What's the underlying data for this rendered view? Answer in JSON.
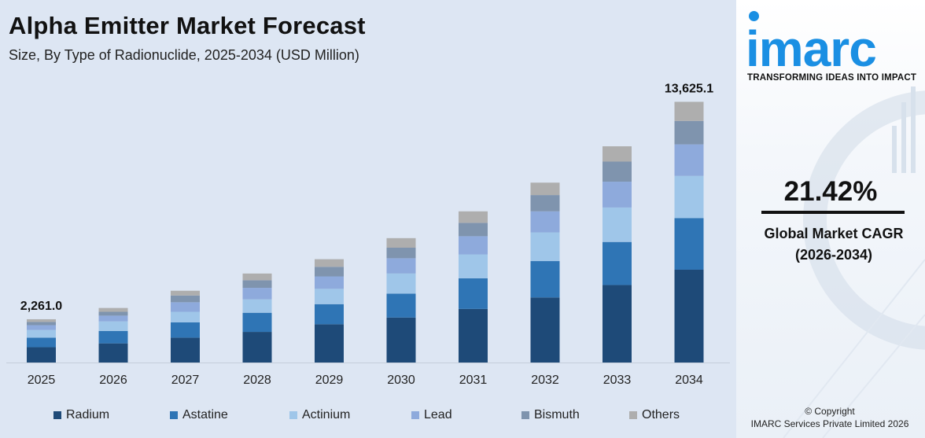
{
  "chart_data": {
    "type": "bar",
    "stacked": true,
    "title": "Alpha Emitter Market Forecast",
    "subtitle": "Size, By Type of Radionuclide, 2025-2034 (USD Million)",
    "xlabel": "",
    "ylabel": "",
    "ylim": [
      0,
      15000
    ],
    "grid": false,
    "legend": "bottom",
    "categories": [
      "2025",
      "2026",
      "2027",
      "2028",
      "2029",
      "2030",
      "2031",
      "2032",
      "2033",
      "2034"
    ],
    "series": [
      {
        "name": "Radium",
        "color": "#1e4a78",
        "values": [
          800,
          1000,
          1300,
          1600,
          2000,
          2350,
          2800,
          3400,
          4050,
          4850
        ]
      },
      {
        "name": "Astatine",
        "color": "#2f75b5",
        "values": [
          500,
          650,
          800,
          1000,
          1050,
          1250,
          1600,
          1900,
          2250,
          2700
        ]
      },
      {
        "name": "Actinium",
        "color": "#9fc6e9",
        "values": [
          400,
          500,
          550,
          700,
          800,
          1050,
          1250,
          1500,
          1800,
          2200
        ]
      },
      {
        "name": "Lead",
        "color": "#8eaadc",
        "values": [
          250,
          300,
          500,
          600,
          650,
          800,
          950,
          1100,
          1350,
          1650
        ]
      },
      {
        "name": "Bismuth",
        "color": "#7f94ae",
        "values": [
          170,
          200,
          350,
          400,
          500,
          550,
          700,
          850,
          1050,
          1225
        ]
      },
      {
        "name": "Others",
        "color": "#aeaeae",
        "values": [
          141,
          200,
          250,
          350,
          400,
          500,
          600,
          650,
          800,
          1000
        ]
      }
    ],
    "totals": [
      2261.0,
      null,
      null,
      null,
      null,
      null,
      null,
      null,
      null,
      13625.1
    ],
    "data_labels": [
      "2,261.0",
      "",
      "",
      "",
      "",
      "",
      "",
      "",
      "",
      "13,625.1"
    ]
  },
  "side_panel": {
    "brand": "imarc",
    "tagline": "TRANSFORMING IDEAS INTO IMPACT",
    "cagr_value": "21.42%",
    "cagr_label_line1": "Global Market CAGR",
    "cagr_label_line2": "(2026-2034)",
    "copyright_line1": "© Copyright",
    "copyright_line2": "IMARC Services Private Limited 2026",
    "brand_color": "#1a8fe3"
  }
}
